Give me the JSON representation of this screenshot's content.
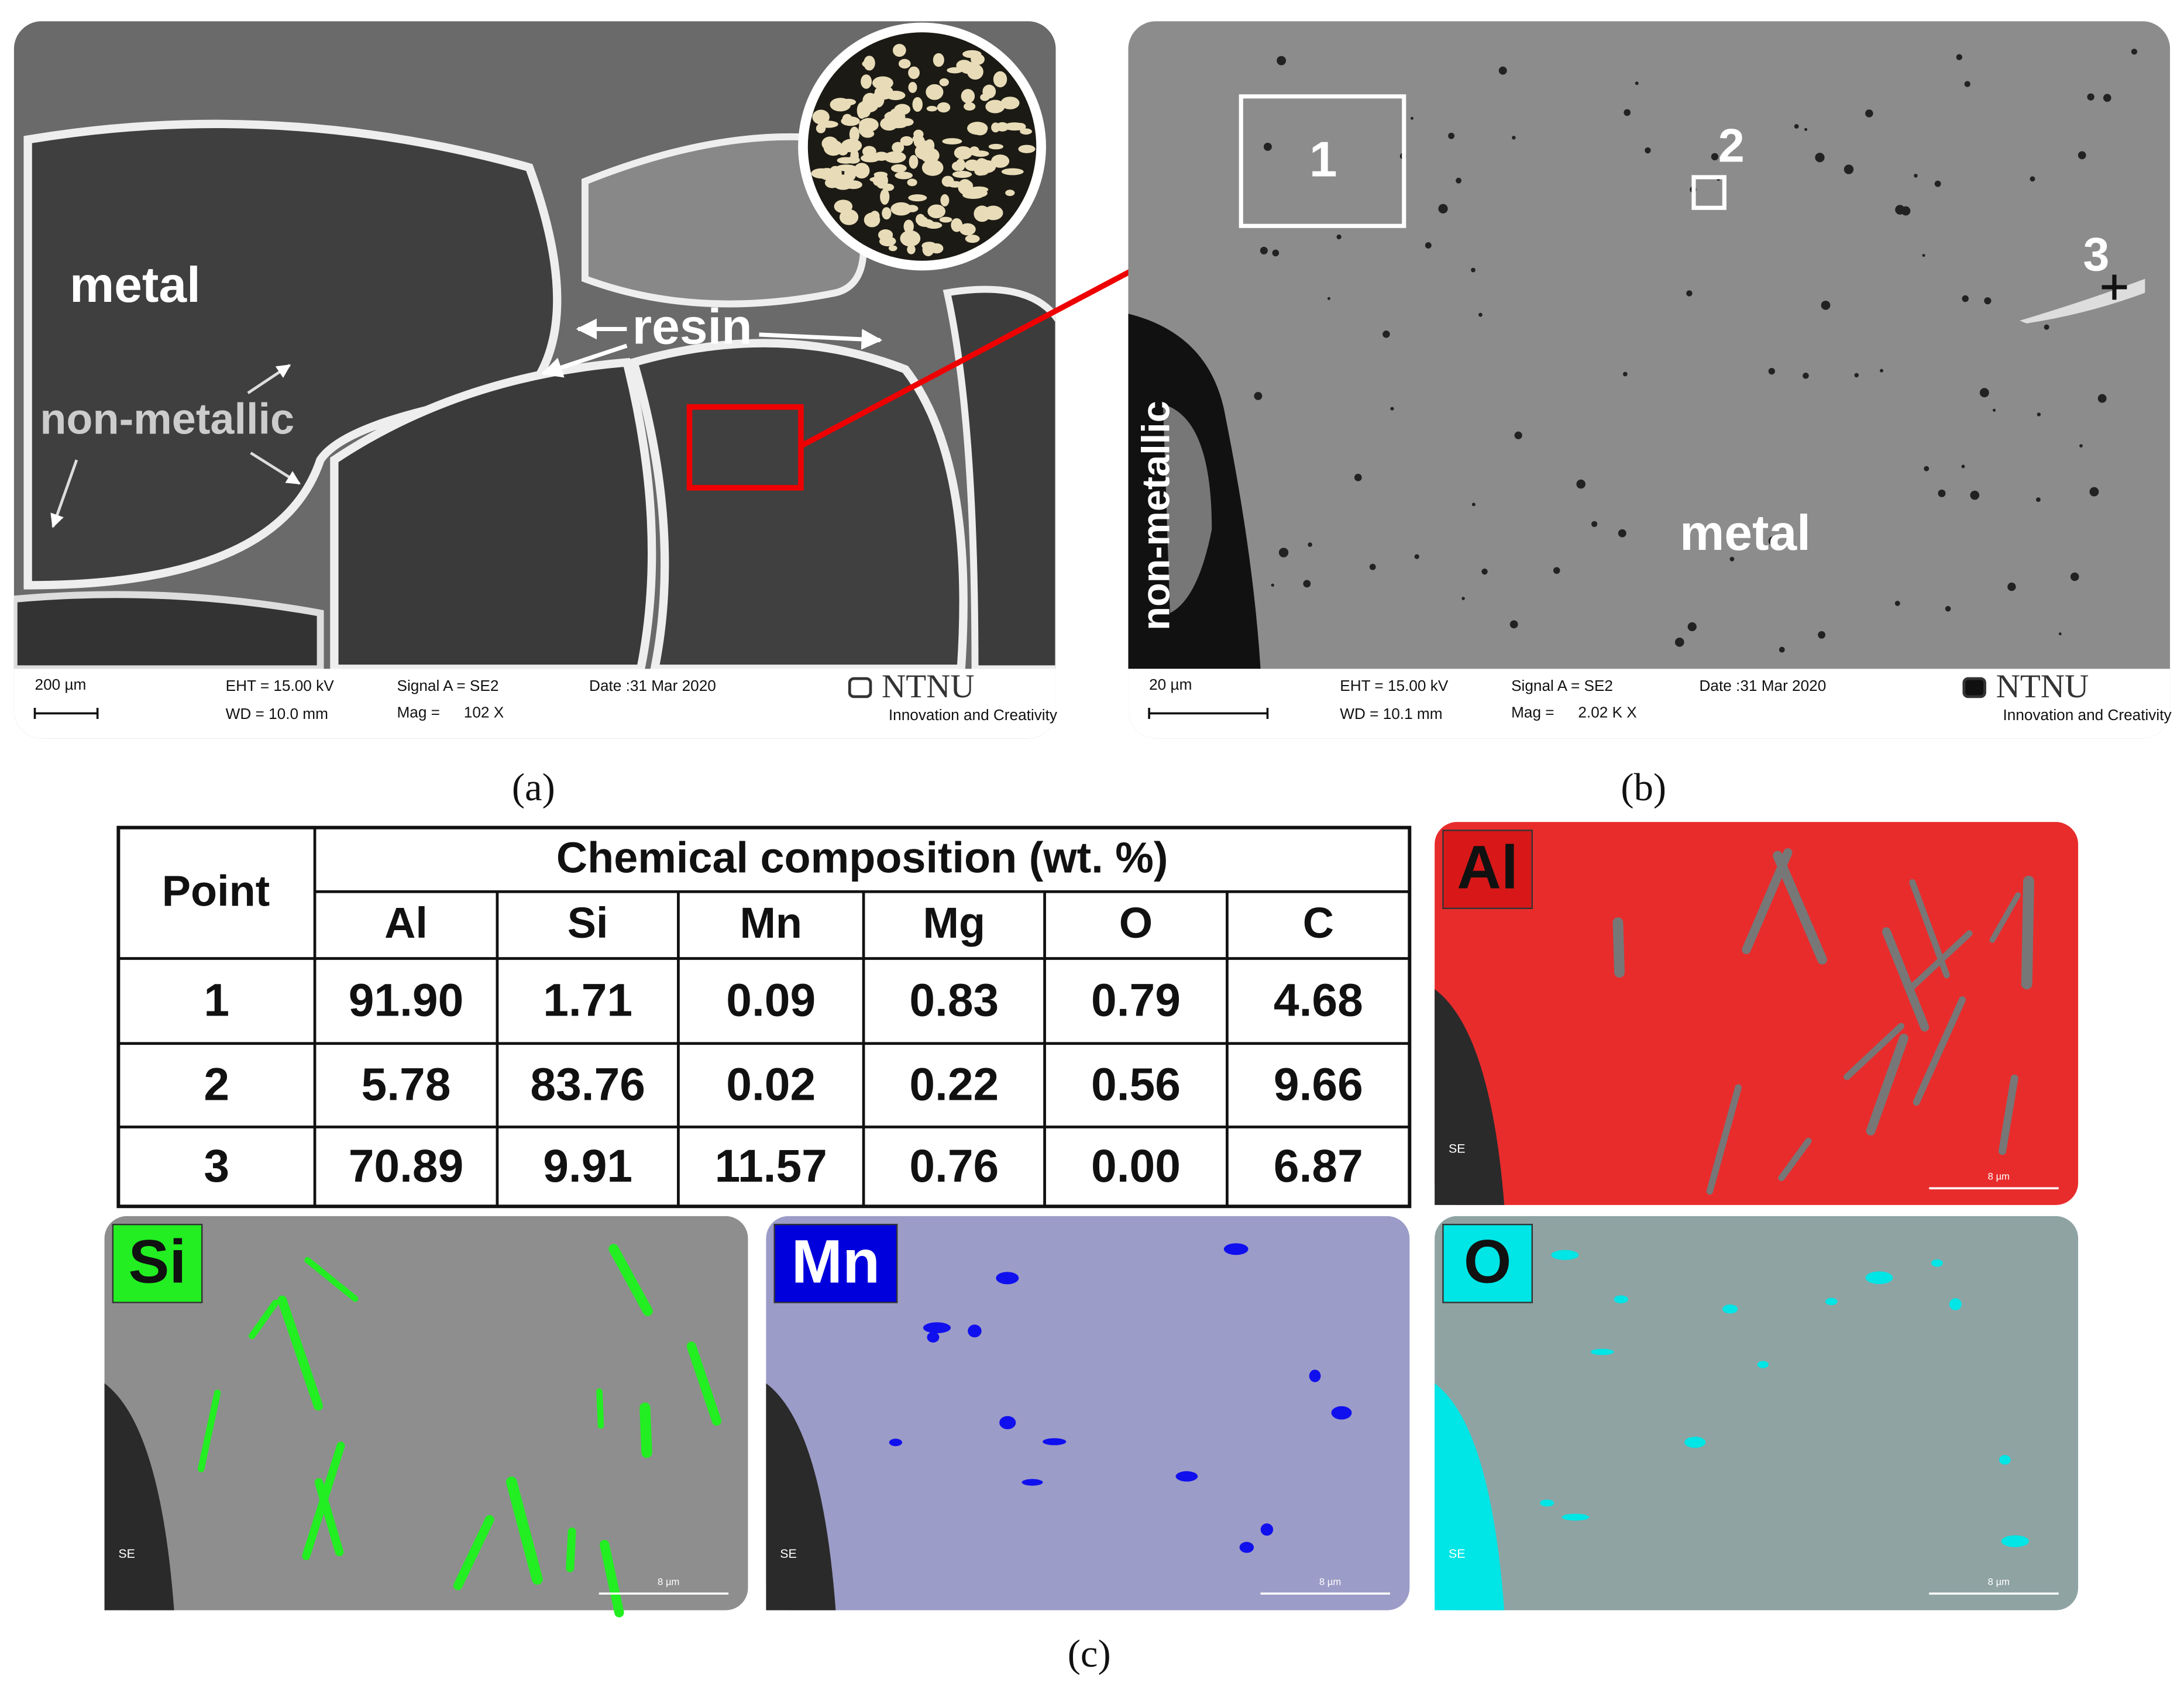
{
  "panels": [
    {
      "label": "(a)",
      "annotations": {
        "metal": "metal",
        "non_metallic": "non-metallic",
        "resin": "resin"
      },
      "info": {
        "scale": "200 µm",
        "eht": "EHT = 15.00 kV",
        "wd": "WD = 10.0 mm",
        "signal": "Signal A = SE2",
        "mag_label": "Mag =",
        "mag": "102 X",
        "date": "Date :31 Mar 2020",
        "logo": "NTNU",
        "logo_sub": "Innovation and Creativity"
      }
    },
    {
      "label": "(b)",
      "annotations": {
        "metal": "metal",
        "non_metallic": "non-metallic",
        "point_1": "1",
        "point_2": "2",
        "point_3": "3"
      },
      "info": {
        "scale": "20 µm",
        "eht": "EHT = 15.00 kV",
        "wd": "WD = 10.1 mm",
        "signal": "Signal A = SE2",
        "mag_label": "Mag =",
        "mag": "2.02 K X",
        "date": "Date :31 Mar 2020",
        "logo": "NTNU",
        "logo_sub": "Innovation and Creativity"
      }
    }
  ],
  "table": {
    "row_header": "Point",
    "title": "Chemical composition (wt. %)",
    "columns": [
      "Al",
      "Si",
      "Mn",
      "Mg",
      "O",
      "C"
    ],
    "rows": [
      [
        "1",
        "91.90",
        "1.71",
        "0.09",
        "0.83",
        "0.79",
        "4.68"
      ],
      [
        "2",
        "5.78",
        "83.76",
        "0.02",
        "0.22",
        "0.56",
        "9.66"
      ],
      [
        "3",
        "70.89",
        "9.91",
        "11.57",
        "0.76",
        "0.00",
        "6.87"
      ]
    ]
  },
  "maps": [
    {
      "element": "Al",
      "detector": "SE",
      "scale": "8 µm"
    },
    {
      "element": "Si",
      "detector": "SE",
      "scale": "8 µm"
    },
    {
      "element": "Mn",
      "detector": "SE",
      "scale": "8 µm"
    },
    {
      "element": "O",
      "detector": "SE",
      "scale": "8 µm"
    }
  ],
  "panel_c_label": "(c)"
}
